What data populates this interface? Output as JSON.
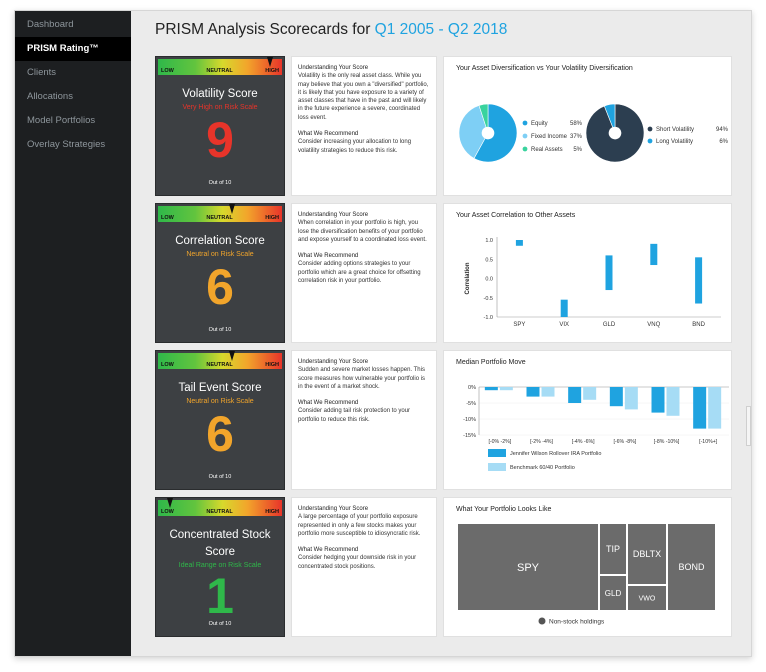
{
  "sidebar": {
    "items": [
      {
        "label": "Dashboard",
        "active": false
      },
      {
        "label": "PRISM Rating™",
        "active": true
      },
      {
        "label": "Clients",
        "active": false
      },
      {
        "label": "Allocations",
        "active": false
      },
      {
        "label": "Model Portfolios",
        "active": false
      },
      {
        "label": "Overlay Strategies",
        "active": false
      }
    ]
  },
  "page": {
    "title": "PRISM Analysis Scorecards for",
    "range": "Q1 2005 - Q2 2018"
  },
  "gauge_labels": {
    "low": "LOW",
    "neutral": "NEUTRAL",
    "high": "HIGH"
  },
  "scores": [
    {
      "name_lines": [
        "Volatility Score"
      ],
      "level": "Very High on Risk Scale",
      "level_color": "#e8342a",
      "value": "9",
      "value_color": "#e8342a",
      "out_of": "Out of 10",
      "gauge_level": 0.9,
      "understanding_title": "Understanding Your Score",
      "understanding": "Volatility is the only real asset class. While you may believe that you own a \"diversified\" portfolio, it is likely that you have exposure to a variety of asset classes that have in the past and will likely in the future experience a severe, coordinated loss event.",
      "recommend_title": "What We Recommend",
      "recommend": "Consider increasing your allocation to long volatility strategies to reduce this risk."
    },
    {
      "name_lines": [
        "Correlation Score"
      ],
      "level": "Neutral on Risk Scale",
      "level_color": "#f2a52b",
      "value": "6",
      "value_color": "#f2a52b",
      "out_of": "Out of 10",
      "gauge_level": 0.6,
      "understanding_title": "Understanding Your Score",
      "understanding": "When correlation in your portfolio is high, you lose the diversification benefits of your portfolio and expose yourself to a coordinated loss event.",
      "recommend_title": "What We Recommend",
      "recommend": "Consider adding options strategies to your portfolio which are a great choice for offsetting correlation risk in your portfolio."
    },
    {
      "name_lines": [
        "Tail Event Score"
      ],
      "level": "Neutral on Risk Scale",
      "level_color": "#f2a52b",
      "value": "6",
      "value_color": "#f2a52b",
      "out_of": "Out of 10",
      "gauge_level": 0.6,
      "understanding_title": "Understanding Your Score",
      "understanding": "Sudden and severe market losses happen. This score measures how vulnerable your portfolio is in the event of a market shock.",
      "recommend_title": "What We Recommend",
      "recommend": "Consider adding tail risk protection to your portfolio to reduce this risk."
    },
    {
      "name_lines": [
        "Concentrated Stock",
        "Score"
      ],
      "level": "Ideal Range on Risk Scale",
      "level_color": "#2fb84a",
      "value": "1",
      "value_color": "#2fb84a",
      "out_of": "Out of 10",
      "gauge_level": 0.1,
      "understanding_title": "Understanding Your Score",
      "understanding": "A large percentage of your portfolio exposure represented in only a few stocks makes your portfolio more susceptible to idiosyncratic risk.",
      "recommend_title": "What We Recommend",
      "recommend": "Consider hedging your downside risk in your concentrated stock positions."
    }
  ],
  "chart_data": [
    {
      "type": "pie",
      "title": "Your Asset Diversification vs Your Volatility Diversification",
      "slices": [
        {
          "label": "Equity",
          "value": 58,
          "display": "58%",
          "color": "#1fa3e0"
        },
        {
          "label": "Fixed Income",
          "value": 37,
          "display": "37%",
          "color": "#7ecff5"
        },
        {
          "label": "Real Assets",
          "value": 5,
          "display": "5%",
          "color": "#39d39e"
        }
      ],
      "slices2": [
        {
          "label": "Short Volatility",
          "value": 94,
          "display": "94%",
          "color": "#2c3e50"
        },
        {
          "label": "Long Volatility",
          "value": 6,
          "display": "6%",
          "color": "#1fa3e0"
        }
      ]
    },
    {
      "type": "bar",
      "title": "Your Asset Correlation to Other Assets",
      "ylabel": "Correlation",
      "categories": [
        "SPY",
        "VIX",
        "GLD",
        "VNQ",
        "BND"
      ],
      "ranges": [
        [
          0.85,
          1.0
        ],
        [
          -1.0,
          -0.55
        ],
        [
          -0.3,
          0.6
        ],
        [
          0.35,
          0.9
        ],
        [
          -0.65,
          0.55
        ]
      ],
      "yticks": [
        "1.0",
        "0.5",
        "0.0",
        "-0.5",
        "-1.0"
      ],
      "ylim": [
        -1.0,
        1.0
      ],
      "color": "#1fa3e0"
    },
    {
      "type": "bar",
      "title": "Median Portfolio Move",
      "categories": [
        "[-0% -2%]",
        "[-2% -4%]",
        "[-4% -6%]",
        "[-6% -8%]",
        "[-8% -10%]",
        "[-10%+]"
      ],
      "yticks": [
        "0%",
        "-5%",
        "-10%",
        "-15%"
      ],
      "ylim": [
        -15,
        0
      ],
      "series": [
        {
          "name": "Jennifer Wilson Rollover IRA Portfolio",
          "values": [
            -1,
            -3,
            -5,
            -6,
            -8,
            -13
          ],
          "color": "#1fa3e0"
        },
        {
          "name": "Benchmark 60/40 Portfolio",
          "values": [
            -1,
            -3,
            -4,
            -7,
            -9,
            -13
          ],
          "color": "#a6dcf5"
        }
      ]
    },
    {
      "type": "treemap",
      "title": "What Your Portfolio Looks Like",
      "cells": [
        "SPY",
        "TIP",
        "DBLTX",
        "BOND",
        "GLD",
        "VWO"
      ],
      "legend": "Non-stock holdings"
    }
  ]
}
